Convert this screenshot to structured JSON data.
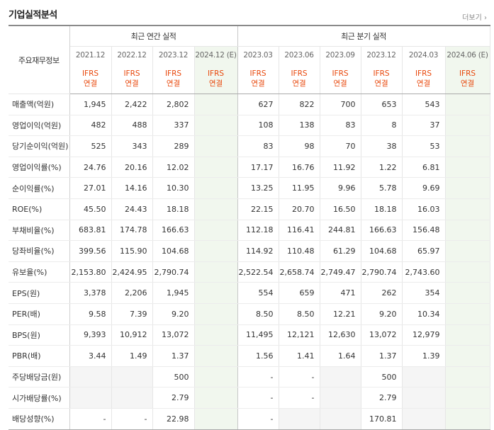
{
  "header": {
    "title": "기업실적분석",
    "more": "더보기 ›"
  },
  "table": {
    "corner_label": "주요재무정보",
    "group_annual": "최근 연간 실적",
    "group_quarter": "최근 분기 실적",
    "periods": [
      "2021.12",
      "2022.12",
      "2023.12",
      "2024.12 (E)",
      "2023.03",
      "2023.06",
      "2023.09",
      "2023.12",
      "2024.03",
      "2024.06 (E)"
    ],
    "ifrs": "IFRS",
    "consol": "연결",
    "rows": [
      {
        "label": "매출액(억원)",
        "values": [
          "1,945",
          "2,422",
          "2,802",
          "",
          "627",
          "822",
          "700",
          "653",
          "543",
          ""
        ]
      },
      {
        "label": "영업이익(억원)",
        "values": [
          "482",
          "488",
          "337",
          "",
          "108",
          "138",
          "83",
          "8",
          "37",
          ""
        ]
      },
      {
        "label": "당기순이익(억원)",
        "values": [
          "525",
          "343",
          "289",
          "",
          "83",
          "98",
          "70",
          "38",
          "53",
          ""
        ]
      },
      {
        "label": "영업이익률(%)",
        "values": [
          "24.76",
          "20.16",
          "12.02",
          "",
          "17.17",
          "16.76",
          "11.92",
          "1.22",
          "6.81",
          ""
        ]
      },
      {
        "label": "순이익률(%)",
        "values": [
          "27.01",
          "14.16",
          "10.30",
          "",
          "13.25",
          "11.95",
          "9.96",
          "5.78",
          "9.69",
          ""
        ]
      },
      {
        "label": "ROE(%)",
        "values": [
          "45.50",
          "24.43",
          "18.18",
          "",
          "22.15",
          "20.70",
          "16.50",
          "18.18",
          "16.03",
          ""
        ]
      },
      {
        "label": "부채비율(%)",
        "values": [
          "683.81",
          "174.78",
          "166.63",
          "",
          "112.18",
          "116.41",
          "244.81",
          "166.63",
          "156.48",
          ""
        ]
      },
      {
        "label": "당좌비율(%)",
        "values": [
          "399.56",
          "115.90",
          "104.68",
          "",
          "114.92",
          "110.48",
          "61.29",
          "104.68",
          "65.97",
          ""
        ]
      },
      {
        "label": "유보율(%)",
        "values": [
          "2,153.80",
          "2,424.95",
          "2,790.74",
          "",
          "2,522.54",
          "2,658.74",
          "2,749.47",
          "2,790.74",
          "2,743.60",
          ""
        ]
      },
      {
        "label": "EPS(원)",
        "values": [
          "3,378",
          "2,206",
          "1,945",
          "",
          "554",
          "659",
          "471",
          "262",
          "354",
          ""
        ]
      },
      {
        "label": "PER(배)",
        "values": [
          "9.58",
          "7.39",
          "9.20",
          "",
          "8.50",
          "8.50",
          "12.21",
          "9.20",
          "10.34",
          ""
        ]
      },
      {
        "label": "BPS(원)",
        "values": [
          "9,393",
          "10,912",
          "13,072",
          "",
          "11,495",
          "12,121",
          "12,630",
          "13,072",
          "12,979",
          ""
        ]
      },
      {
        "label": "PBR(배)",
        "values": [
          "3.44",
          "1.49",
          "1.37",
          "",
          "1.56",
          "1.41",
          "1.64",
          "1.37",
          "1.39",
          ""
        ]
      },
      {
        "label": "주당배당금(원)",
        "values": [
          "",
          "",
          "500",
          "",
          "-",
          "-",
          "",
          "500",
          "",
          ""
        ]
      },
      {
        "label": "시가배당률(%)",
        "values": [
          "",
          "",
          "2.79",
          "",
          "-",
          "-",
          "",
          "2.79",
          "",
          ""
        ]
      },
      {
        "label": "배당성향(%)",
        "values": [
          "-",
          "-",
          "22.98",
          "",
          "-",
          "",
          "",
          "170.81",
          "",
          ""
        ]
      }
    ]
  }
}
